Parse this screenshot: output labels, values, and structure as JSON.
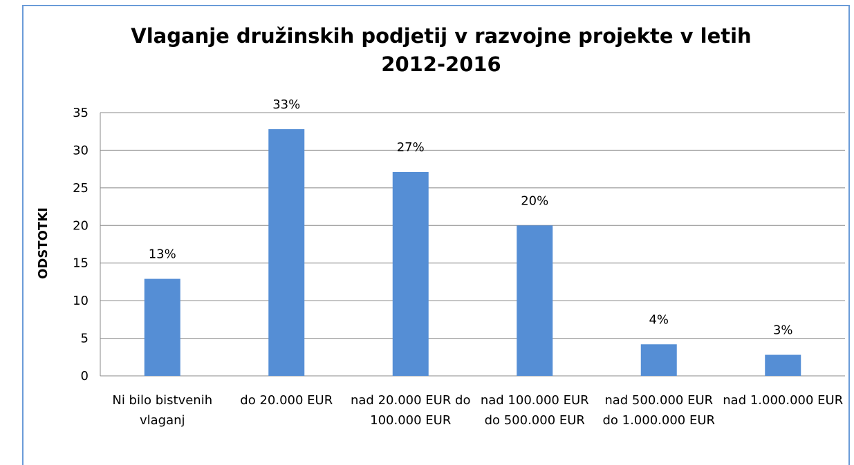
{
  "chart_data": {
    "type": "bar",
    "title": "Vlaganje družinskih podjetij v razvojne projekte v letih 2012-2016",
    "y_label": "ODSTOTKI",
    "categories": [
      "Ni bilo bistvenih vlaganj",
      "do 20.000 EUR",
      "nad 20.000 EUR do 100.000 EUR",
      "nad 100.000 EUR do 500.000 EUR",
      "nad 500.000 EUR do 1.000.000 EUR",
      "nad 1.000.000 EUR"
    ],
    "values": [
      12.9,
      32.8,
      27.1,
      20.0,
      4.2,
      2.8
    ],
    "value_labels": [
      "13%",
      "33%",
      "27%",
      "20%",
      "4%",
      "3%"
    ],
    "color": "#558ed5",
    "ylim": [
      0,
      35
    ],
    "yticks": [
      0,
      5,
      10,
      15,
      20,
      25,
      30,
      35
    ],
    "grid": true
  }
}
